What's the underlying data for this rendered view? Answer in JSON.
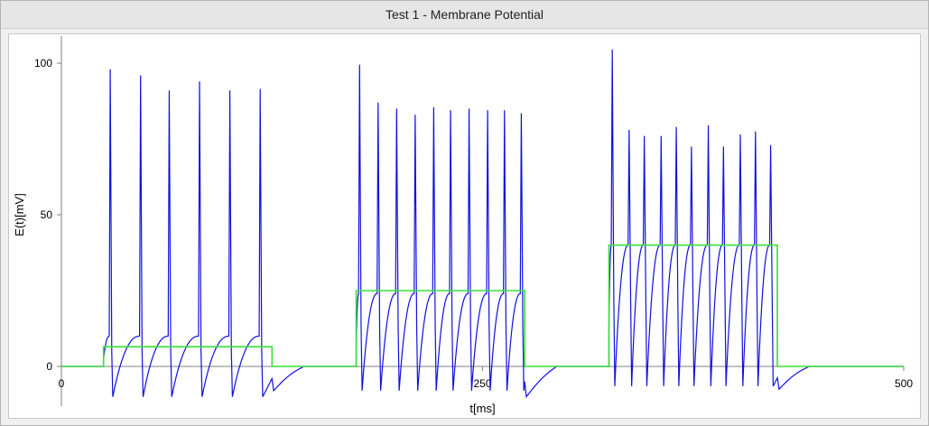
{
  "window": {
    "title": "Test 1 - Membrane Potential"
  },
  "chart_data": {
    "type": "line",
    "title": "Test 1 - Membrane Potential",
    "xlabel": "t[ms]",
    "ylabel": "E(t)[mV]",
    "xlim": [
      0,
      500
    ],
    "ylim": [
      -12,
      110
    ],
    "xticks": [
      "0",
      "250",
      "500"
    ],
    "yticks": [
      "0",
      "50",
      "100"
    ],
    "colors": {
      "membrane": "#1010e0",
      "stimulus": "#3ae03a",
      "axis": "#808080"
    },
    "series": [
      {
        "name": "",
        "role": "stimulus",
        "x": [
          0,
          25,
          25,
          125,
          125,
          175,
          175,
          275,
          275,
          325,
          325,
          425,
          425,
          500
        ],
        "values": [
          0,
          0,
          6.5,
          6.5,
          0,
          0,
          25,
          25,
          0,
          0,
          40,
          40,
          0,
          0
        ]
      },
      {
        "name": "",
        "role": "membrane",
        "stimulus_windows": [
          {
            "start": 25,
            "end": 125,
            "spike_times": [
              29,
              47,
              64,
              82,
              100,
              118
            ],
            "peaks": [
              98,
              96,
              91,
              94,
              91,
              91.5
            ],
            "trough": -10,
            "reset": 8
          },
          {
            "start": 175,
            "end": 275,
            "spike_times": [
              177,
              188,
              199,
              210,
              221,
              231,
              242,
              253,
              263,
              273
            ],
            "peaks": [
              99.5,
              87,
              85,
              83,
              85.5,
              84.5,
              85,
              84.5,
              84.5,
              83.5
            ],
            "trough": -8,
            "reset": 22
          },
          {
            "start": 325,
            "end": 425,
            "spike_times": [
              327,
              337,
              346,
              356,
              365,
              374,
              384,
              393,
              403,
              412,
              421
            ],
            "peaks": [
              104.5,
              78,
              76,
              76,
              79,
              72.5,
              79.5,
              72.5,
              76.5,
              77.5,
              73
            ],
            "trough": -6.5,
            "reset": 38
          }
        ],
        "post_window_undershoot": [
          -8,
          -10,
          -7.5
        ]
      }
    ],
    "grid": false,
    "legend": "none"
  }
}
